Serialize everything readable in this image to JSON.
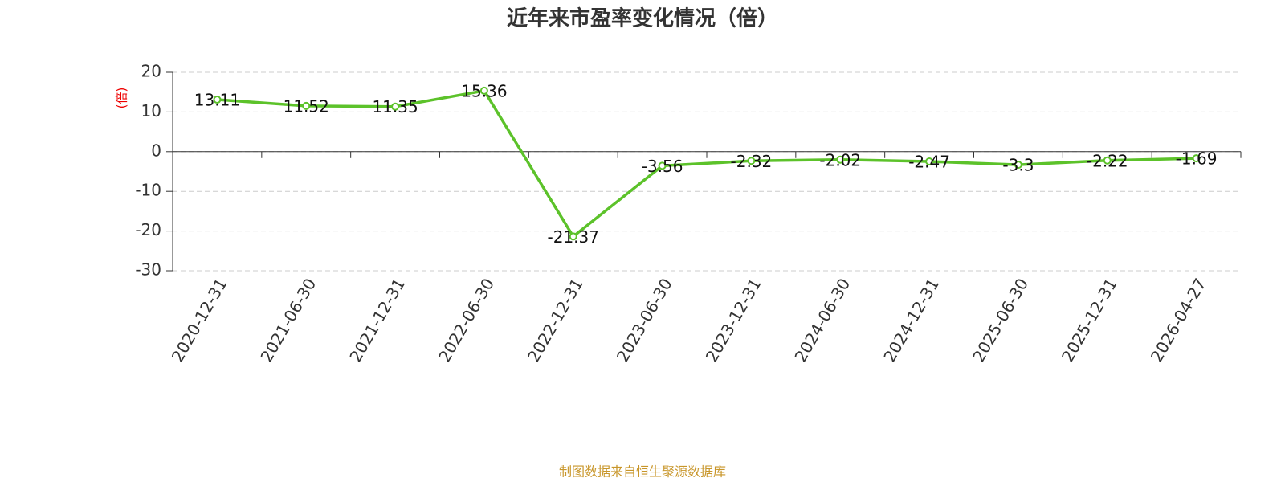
{
  "chart_data": {
    "type": "line",
    "title": "近年来市盈率变化情况（倍）",
    "y_label": "(倍)",
    "source": "制图数据来自恒生聚源数据库",
    "categories": [
      "2020-12-31",
      "2021-06-30",
      "2021-12-31",
      "2022-06-30",
      "2022-12-31",
      "2023-06-30",
      "2023-12-31",
      "2024-06-30",
      "2024-12-31",
      "2025-06-30",
      "2025-12-31",
      "2026-04-27"
    ],
    "values": [
      13.11,
      11.52,
      11.35,
      15.36,
      -21.37,
      -3.56,
      -2.32,
      -2.02,
      -2.47,
      -3.3,
      -2.22,
      -1.69
    ],
    "color": "#5cc22a",
    "ylim": [
      -30,
      20
    ],
    "yticks": [
      -30,
      -20,
      -10,
      0,
      10,
      20
    ],
    "grid": true
  }
}
